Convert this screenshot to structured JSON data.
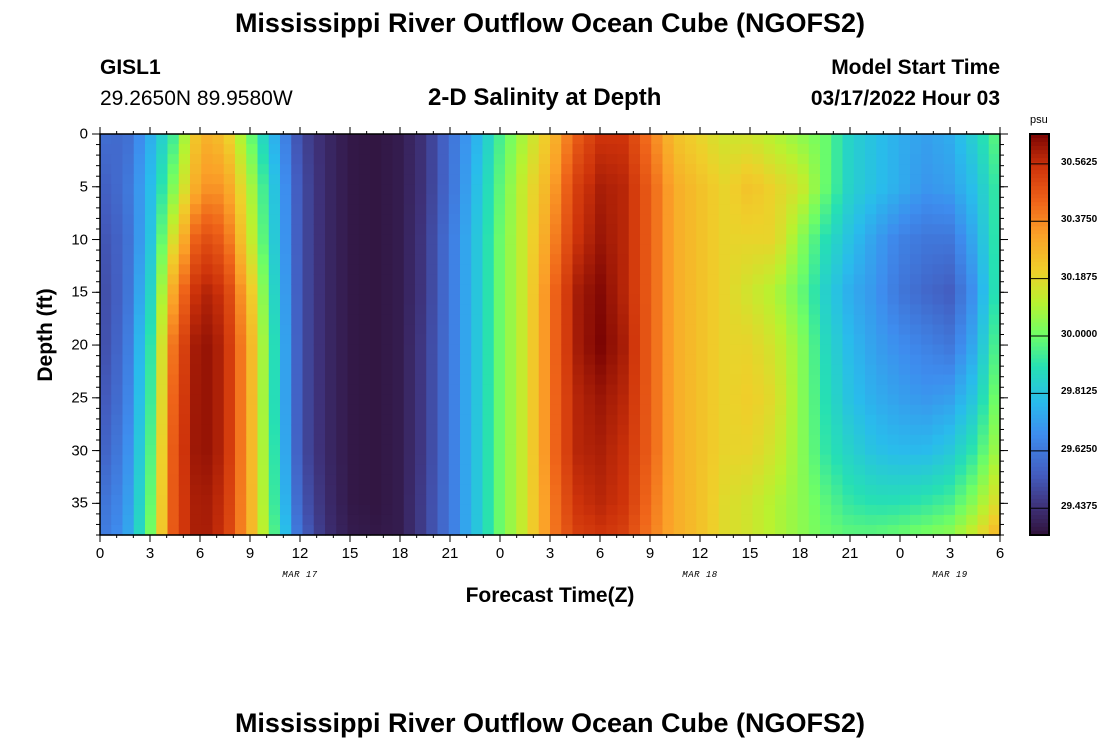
{
  "title": "Mississippi River Outflow Ocean Cube (NGOFS2)",
  "title_bottom": "Mississippi River Outflow Ocean Cube (NGOFS2)",
  "station": {
    "id": "GISL1",
    "coords": "29.2650N  89.9580W"
  },
  "subtitle": "2-D Salinity at Depth",
  "model_start": {
    "label": "Model Start Time",
    "value": "03/17/2022 Hour 03"
  },
  "colorbar": {
    "unit": "psu",
    "ticks": [
      "30.5625",
      "30.3750",
      "30.1875",
      "30.0000",
      "29.8125",
      "29.6250",
      "29.4375"
    ],
    "tick_values": [
      30.5625,
      30.375,
      30.1875,
      30.0,
      29.8125,
      29.625,
      29.4375
    ],
    "vmin": 29.35,
    "vmax": 30.66
  },
  "chart_data": {
    "type": "heatmap",
    "title": "2-D Salinity at Depth",
    "xlabel": "Forecast Time(Z)",
    "ylabel": "Depth (ft)",
    "x_ticks": [
      "0",
      "3",
      "6",
      "9",
      "12",
      "15",
      "18",
      "21",
      "0",
      "3",
      "6",
      "9",
      "12",
      "15",
      "18",
      "21",
      "0",
      "3",
      "6"
    ],
    "x_tick_hours": [
      0,
      3,
      6,
      9,
      12,
      15,
      18,
      21,
      24,
      27,
      30,
      33,
      36,
      39,
      42,
      45,
      48,
      51,
      54
    ],
    "x_range_hours": [
      0,
      54
    ],
    "date_labels": [
      {
        "text": "MAR 17",
        "hour": 12
      },
      {
        "text": "MAR 18",
        "hour": 36
      },
      {
        "text": "MAR 19",
        "hour": 51
      }
    ],
    "y_ticks": [
      "0",
      "5",
      "10",
      "15",
      "20",
      "25",
      "30",
      "35"
    ],
    "y_tick_values": [
      0,
      5,
      10,
      15,
      20,
      25,
      30,
      35
    ],
    "y_range": [
      0,
      38
    ],
    "units": "psu",
    "time_hours": [
      0,
      1.5,
      3,
      4.5,
      6,
      7.5,
      9,
      10.5,
      12,
      13.5,
      15,
      16.5,
      18,
      19.5,
      21,
      22.5,
      24,
      25.5,
      27,
      28.5,
      30,
      31.5,
      33,
      34.5,
      36,
      37.5,
      39,
      40.5,
      42,
      43.5,
      45,
      46.5,
      48,
      49.5,
      51,
      52.5,
      54
    ],
    "depth_ft": [
      0,
      5,
      10,
      15,
      20,
      25,
      30,
      35,
      38
    ],
    "salinity": [
      [
        29.6,
        29.58,
        29.75,
        29.95,
        30.3,
        30.25,
        30.0,
        29.75,
        29.5,
        29.42,
        29.37,
        29.36,
        29.38,
        29.45,
        29.6,
        29.75,
        29.95,
        30.1,
        30.25,
        30.45,
        30.55,
        30.55,
        30.4,
        30.25,
        30.2,
        30.15,
        30.15,
        30.1,
        30.05,
        30.0,
        29.85,
        29.8,
        29.75,
        29.72,
        29.75,
        29.85,
        30.0
      ],
      [
        29.55,
        29.6,
        29.78,
        30.05,
        30.35,
        30.35,
        30.1,
        29.8,
        29.52,
        29.42,
        29.37,
        29.36,
        29.38,
        29.45,
        29.6,
        29.78,
        29.98,
        30.15,
        30.3,
        30.52,
        30.6,
        30.58,
        30.45,
        30.3,
        30.25,
        30.2,
        30.25,
        30.2,
        30.15,
        30.0,
        29.85,
        29.8,
        29.75,
        29.7,
        29.72,
        29.8,
        29.95
      ],
      [
        29.52,
        29.58,
        29.8,
        30.2,
        30.5,
        30.45,
        30.15,
        29.82,
        29.52,
        29.42,
        29.37,
        29.36,
        29.38,
        29.46,
        29.62,
        29.8,
        30.0,
        30.15,
        30.35,
        30.55,
        30.62,
        30.58,
        30.45,
        30.3,
        30.25,
        30.2,
        30.2,
        30.2,
        30.05,
        29.9,
        29.8,
        29.72,
        29.65,
        29.62,
        29.62,
        29.75,
        29.95
      ],
      [
        29.5,
        29.58,
        29.85,
        30.35,
        30.6,
        30.55,
        30.25,
        29.85,
        29.52,
        29.42,
        29.37,
        29.36,
        29.38,
        29.46,
        29.62,
        29.8,
        30.0,
        30.15,
        30.4,
        30.6,
        30.65,
        30.58,
        30.45,
        30.3,
        30.25,
        30.2,
        30.15,
        30.1,
        30.0,
        29.85,
        29.75,
        29.7,
        29.62,
        29.58,
        29.55,
        29.7,
        29.95
      ],
      [
        29.5,
        29.6,
        29.9,
        30.45,
        30.64,
        30.58,
        30.3,
        29.88,
        29.52,
        29.42,
        29.37,
        29.36,
        29.38,
        29.47,
        29.62,
        29.8,
        30.0,
        30.15,
        30.4,
        30.6,
        30.66,
        30.6,
        30.45,
        30.3,
        30.25,
        30.2,
        30.2,
        30.15,
        30.05,
        29.88,
        29.78,
        29.72,
        29.68,
        29.65,
        29.62,
        29.75,
        30.0
      ],
      [
        29.52,
        29.62,
        29.92,
        30.48,
        30.64,
        30.58,
        30.3,
        29.88,
        29.52,
        29.42,
        29.37,
        29.36,
        29.38,
        29.47,
        29.62,
        29.8,
        30.0,
        30.15,
        30.4,
        30.58,
        30.62,
        30.58,
        30.45,
        30.3,
        30.25,
        30.2,
        30.22,
        30.18,
        30.05,
        29.9,
        29.8,
        29.75,
        29.72,
        29.7,
        29.72,
        29.82,
        30.05
      ],
      [
        29.55,
        29.65,
        29.95,
        30.5,
        30.64,
        30.58,
        30.3,
        29.9,
        29.52,
        29.42,
        29.37,
        29.36,
        29.38,
        29.47,
        29.62,
        29.8,
        30.0,
        30.15,
        30.4,
        30.58,
        30.6,
        30.56,
        30.45,
        30.3,
        30.25,
        30.2,
        30.2,
        30.15,
        30.05,
        29.92,
        29.85,
        29.8,
        29.78,
        29.78,
        29.82,
        29.92,
        30.1
      ],
      [
        29.6,
        29.68,
        29.98,
        30.5,
        30.62,
        30.56,
        30.3,
        29.92,
        29.55,
        29.43,
        29.37,
        29.36,
        29.38,
        29.48,
        29.62,
        29.8,
        30.0,
        30.15,
        30.38,
        30.55,
        30.58,
        30.55,
        30.42,
        30.3,
        30.25,
        30.18,
        30.15,
        30.1,
        30.05,
        29.98,
        29.92,
        29.9,
        29.9,
        29.92,
        29.95,
        30.05,
        30.2
      ],
      [
        29.62,
        29.7,
        30.0,
        30.5,
        30.62,
        30.55,
        30.3,
        29.95,
        29.58,
        29.44,
        29.38,
        29.37,
        29.38,
        29.48,
        29.62,
        29.8,
        30.0,
        30.15,
        30.38,
        30.52,
        30.55,
        30.52,
        30.4,
        30.3,
        30.25,
        30.18,
        30.15,
        30.1,
        30.05,
        30.0,
        29.98,
        29.98,
        30.0,
        30.02,
        30.05,
        30.15,
        30.3
      ]
    ]
  }
}
